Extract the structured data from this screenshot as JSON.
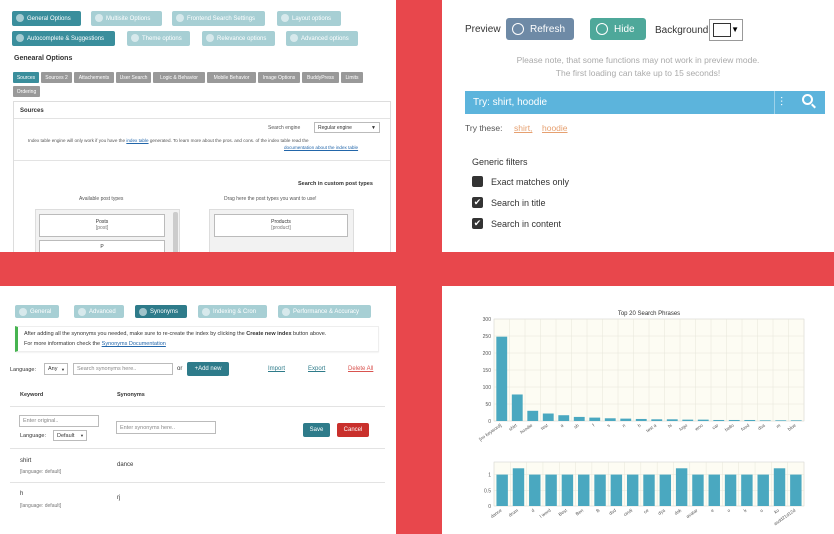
{
  "q1": {
    "tabs_row1": [
      "General Options",
      "Multisite Options",
      "Frontend Search Settings",
      "Layout options"
    ],
    "tabs_row2": [
      "Autocomplete & Suggestions",
      "Theme options",
      "Relevance options",
      "Advanced options"
    ],
    "section_title": "Genearal Options",
    "subtabs": [
      "Sources",
      "Sources 2",
      "Attachements",
      "User Search",
      "Logic & Behavior",
      "Mobile Behavior",
      "Image Options",
      "BuddyPress",
      "Limits",
      "Ordering"
    ],
    "sources_header": "Sources",
    "search_engine_label": "Search engine",
    "search_engine_value": "Regular engine",
    "index_note_1": "Index table engine will only work if you have the",
    "index_note_link": "index table",
    "index_note_2": "generated.  To learn more about the pros. and cons. of the index table read the",
    "index_note_link2": "documentation about the index table",
    "custom_types_title": "Search in custom post types",
    "available_label": "Available post types",
    "drag_label": "Drag here the post types you want to use!",
    "available": [
      {
        "name": "Posts",
        "slug": "[post]"
      }
    ],
    "selected": [
      {
        "name": "Products",
        "slug": "[product]"
      }
    ],
    "truncated_item": "P"
  },
  "q2": {
    "preview_label": "Preview",
    "refresh_label": "Refresh",
    "hide_label": "Hide",
    "background_label": "Background:",
    "note1": "Please note, that some functions may not work in preview mode.",
    "note2": "The first loading can take up to 15 seconds!",
    "search_placeholder": "Try: shirt, hoodie",
    "try_label": "Try these:",
    "suggestions": [
      "shirt,",
      "hoodie"
    ],
    "filters_title": "Generic filters",
    "filters": [
      {
        "label": "Exact matches only",
        "checked": false
      },
      {
        "label": "Search in title",
        "checked": true
      },
      {
        "label": "Search in content",
        "checked": true
      }
    ],
    "colors": {
      "accent": "#5cb4dc",
      "refresh_bg": "#6e8aa6",
      "hide_bg": "#4ea89a"
    }
  },
  "q3": {
    "tabs": [
      "General",
      "Advanced",
      "Synonyms",
      "Indexing & Cron",
      "Performance & Accuracy"
    ],
    "notice_1": "After adding all the synonyms you needed, make sure to re-create the index by clicking the",
    "notice_bold": "Create new index",
    "notice_2": "button above.",
    "notice_3": "For more information check the",
    "notice_link": "Synonyms Documentation",
    "language_label": "Language:",
    "language_value": "Any",
    "search_placeholder": "Search synonyms here..",
    "or_label": "or",
    "add_new_label": "+Add new",
    "import_label": "Import",
    "export_label": "Export",
    "delete_all_label": "Delete All",
    "col_keyword": "Keyword",
    "col_synonyms": "Synonyms",
    "new_keyword_placeholder": "Enter original..",
    "new_lang_label": "Language:",
    "new_lang_value": "Default",
    "new_synonyms_placeholder": "Enter synonyms here..",
    "save_label": "Save",
    "cancel_label": "Cancel",
    "rows": [
      {
        "keyword": "shirt",
        "lang": "[language: default]",
        "synonyms": "dance"
      },
      {
        "keyword": "h",
        "lang": "[language: default]",
        "synonyms": "rj"
      }
    ]
  },
  "chart_data": [
    {
      "type": "bar",
      "title": "Top 20 Search Phrases",
      "categories": [
        "[no keyword]",
        "shirt",
        "hoodie",
        "test",
        "a",
        "sh",
        "f",
        "s",
        "n",
        "h",
        "test a",
        "hi",
        "logo",
        "woo",
        "car",
        "hello",
        "food",
        "dsa",
        "m",
        "blue"
      ],
      "values": [
        248,
        78,
        30,
        22,
        17,
        12,
        10,
        8,
        7,
        6,
        5,
        5,
        4,
        4,
        3,
        3,
        3,
        2,
        2,
        2
      ],
      "ylim": [
        0,
        300
      ],
      "yticks": [
        0,
        50,
        100,
        150,
        200,
        250,
        300
      ],
      "color": "#4aa8c0",
      "grid": true
    },
    {
      "type": "bar",
      "title": "",
      "categories": [
        "dance",
        "drum",
        "d",
        "l word",
        "Best",
        "Ben",
        "B",
        "dsd",
        "cindi",
        "ce",
        "dya",
        "dsk",
        "avatar",
        "e",
        "o",
        "k",
        "u",
        "ko",
        "asdd21d12d"
      ],
      "values": [
        1,
        1.2,
        1,
        1,
        1,
        1,
        1,
        1,
        1,
        1,
        1,
        1.2,
        1,
        1,
        1,
        1,
        1,
        1.2,
        1
      ],
      "ylim": [
        0,
        1.4
      ],
      "yticks": [
        0,
        0.5,
        1.0
      ],
      "color": "#4aa8c0",
      "grid": true
    }
  ]
}
